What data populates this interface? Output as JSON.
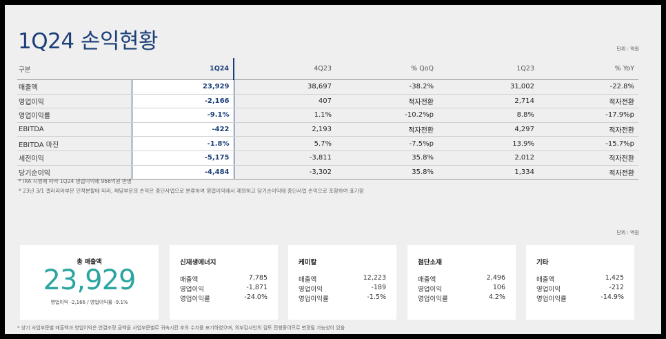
{
  "title": "1Q24 손익현황",
  "unit_label": "단위 : 억원",
  "table": {
    "headers": [
      "구분",
      "1Q24",
      "4Q23",
      "% QoQ",
      "1Q23",
      "% YoY"
    ],
    "rows": [
      [
        "매출액",
        "23,929",
        "38,697",
        "-38.2%",
        "31,002",
        "-22.8%"
      ],
      [
        "영업이익",
        "-2,166",
        "407",
        "적자전환",
        "2,714",
        "적자전환"
      ],
      [
        "영업이익률",
        "-9.1%",
        "1.1%",
        "-10.2%p",
        "8.8%",
        "-17.9%p"
      ],
      [
        "EBITDA",
        "-422",
        "2,193",
        "적자전환",
        "4,297",
        "적자전환"
      ],
      [
        "EBITDA 마진",
        "-1.8%",
        "5.7%",
        "-7.5%p",
        "13.9%",
        "-15.7%p"
      ],
      [
        "세전이익",
        "-5,175",
        "-3,811",
        "35.8%",
        "2,012",
        "적자전환"
      ],
      [
        "당기순이익",
        "-4,484",
        "-3,302",
        "35.8%",
        "1,334",
        "적자전환"
      ]
    ]
  },
  "notes": [
    "* IRA 시행에 따라 1Q24 영업이익에 966억원 반영",
    "* 23년 3/1 갤러리아부문 인적분할에 따라, 해당부문의 손익은 중단사업으로 분류하여 영업이익에서 제외하고 당기순이익에 중단사업 손익으로 포함하여 표기함"
  ],
  "summary": {
    "label": "총 매출액",
    "value": "23,929",
    "sub": "영업이익 -2,166 / 영업이익률 -9.1%"
  },
  "segments": [
    {
      "name": "신재생에너지",
      "rows": [
        [
          "매출액",
          "7,785"
        ],
        [
          "영업이익",
          "-1,871"
        ],
        [
          "영업이익률",
          "-24.0%"
        ]
      ]
    },
    {
      "name": "케미칼",
      "rows": [
        [
          "매출액",
          "12,223"
        ],
        [
          "영업이익",
          "-189"
        ],
        [
          "영업이익률",
          "-1.5%"
        ]
      ]
    },
    {
      "name": "첨단소재",
      "rows": [
        [
          "매출액",
          "2,496"
        ],
        [
          "영업이익",
          "106"
        ],
        [
          "영업이익률",
          "4.2%"
        ]
      ]
    },
    {
      "name": "기타",
      "rows": [
        [
          "매출액",
          "1,425"
        ],
        [
          "영업이익",
          "-212"
        ],
        [
          "영업이익률",
          "-14.9%"
        ]
      ]
    }
  ],
  "footer": "* 상기 사업부문별 매출액과 영업이익은 연결조정 금액을 사업부문별로 귀속시킨 후의 수치를 표기하였으며, 외부감사인의 검토 진행중이므로 변경될 가능성이 있음",
  "colors": {
    "accent": "#1b3f78",
    "teal": "#2aa5a0",
    "background": "#efefef"
  }
}
